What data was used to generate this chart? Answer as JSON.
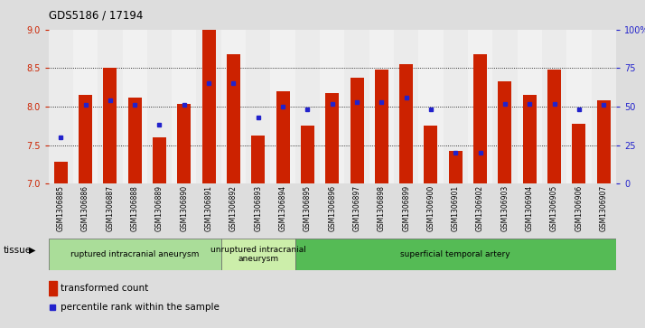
{
  "title": "GDS5186 / 17194",
  "samples": [
    "GSM1306885",
    "GSM1306886",
    "GSM1306887",
    "GSM1306888",
    "GSM1306889",
    "GSM1306890",
    "GSM1306891",
    "GSM1306892",
    "GSM1306893",
    "GSM1306894",
    "GSM1306895",
    "GSM1306896",
    "GSM1306897",
    "GSM1306898",
    "GSM1306899",
    "GSM1306900",
    "GSM1306901",
    "GSM1306902",
    "GSM1306903",
    "GSM1306904",
    "GSM1306905",
    "GSM1306906",
    "GSM1306907"
  ],
  "transformed_count": [
    7.28,
    8.15,
    8.5,
    8.12,
    7.6,
    8.03,
    9.0,
    8.68,
    7.62,
    8.2,
    7.75,
    8.17,
    8.37,
    8.48,
    8.55,
    7.75,
    7.42,
    8.68,
    8.33,
    8.15,
    8.48,
    7.78,
    8.08
  ],
  "percentile_rank": [
    30,
    51,
    54,
    51,
    38,
    51,
    65,
    65,
    43,
    50,
    48,
    52,
    53,
    53,
    56,
    48,
    20,
    20,
    52,
    52,
    52,
    48,
    51
  ],
  "groups": [
    {
      "label": "ruptured intracranial aneurysm",
      "start": 0,
      "end": 7,
      "color": "#aadd99"
    },
    {
      "label": "unruptured intracranial\naneurysm",
      "start": 7,
      "end": 10,
      "color": "#cceeaa"
    },
    {
      "label": "superficial temporal artery",
      "start": 10,
      "end": 23,
      "color": "#55bb55"
    }
  ],
  "ylim_left": [
    7.0,
    9.0
  ],
  "ylim_right": [
    0,
    100
  ],
  "bar_color": "#cc2200",
  "dot_color": "#2222cc",
  "bg_color": "#dddddd",
  "col_bg_odd": "#d8d8d8",
  "col_bg_even": "#e4e4e4",
  "plot_bg": "#ffffff",
  "left_tick_color": "#cc2200",
  "right_tick_color": "#2222cc",
  "left_yticks": [
    7.0,
    7.5,
    8.0,
    8.5,
    9.0
  ],
  "right_ytick_vals": [
    0,
    25,
    50,
    75,
    100
  ],
  "right_ytick_labels": [
    "0",
    "25",
    "50",
    "75",
    "100%"
  ]
}
